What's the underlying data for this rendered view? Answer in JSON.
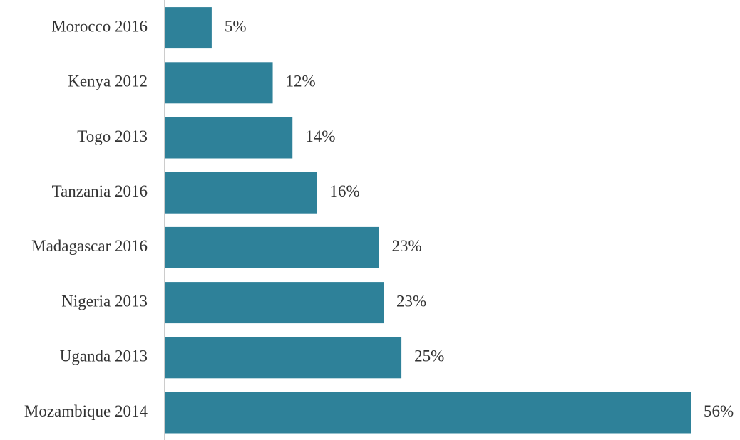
{
  "chart_data": {
    "type": "barh",
    "categories": [
      "Morocco 2016",
      "Kenya 2012",
      "Togo 2013",
      "Tanzania 2016",
      "Madagascar 2016",
      "Nigeria 2013",
      "Uganda 2013",
      "Mozambique 2014"
    ],
    "values": [
      5,
      11.5,
      13.6,
      16.2,
      22.8,
      23.3,
      25.2,
      56
    ],
    "value_labels": [
      "5%",
      "12%",
      "14%",
      "16%",
      "23%",
      "23%",
      "25%",
      "56%"
    ],
    "color": "#2e8199"
  }
}
